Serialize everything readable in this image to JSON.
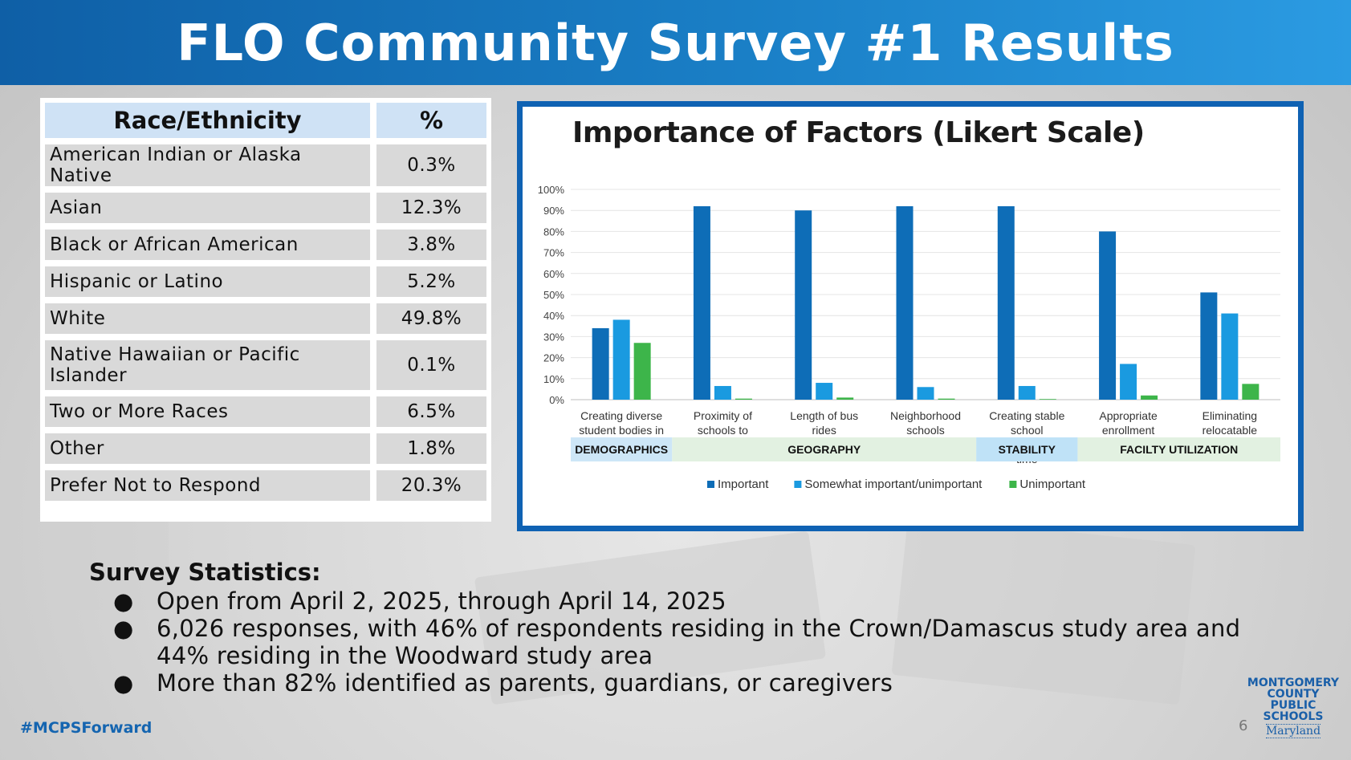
{
  "header": {
    "title": "FLO Community Survey #1 Results"
  },
  "table": {
    "headers": [
      "Race/Ethnicity",
      "%"
    ],
    "rows": [
      {
        "label": "American Indian or Alaska Native",
        "value": "0.3%"
      },
      {
        "label": "Asian",
        "value": "12.3%"
      },
      {
        "label": "Black or African American",
        "value": "3.8%"
      },
      {
        "label": "Hispanic or Latino",
        "value": "5.2%"
      },
      {
        "label": "White",
        "value": "49.8%"
      },
      {
        "label": "Native Hawaiian or Pacific Islander",
        "value": "0.1%"
      },
      {
        "label": "Two or More Races",
        "value": "6.5%"
      },
      {
        "label": "Other",
        "value": "1.8%"
      },
      {
        "label": "Prefer Not to Respond",
        "value": "20.3%"
      }
    ]
  },
  "chart_data": {
    "type": "bar",
    "title": "Importance of Factors (Likert Scale)",
    "categories": [
      "Creating diverse student bodies in each school",
      "Proximity of schools to student homes",
      "Length of bus rides",
      "Neighborhood schools",
      "Creating stable school assignments over time",
      "Appropriate enrollment",
      "Eliminating relocatable classrooms"
    ],
    "series": [
      {
        "name": "Important",
        "color": "#0e6db7",
        "values": [
          34,
          92,
          90,
          92,
          92,
          80,
          51
        ]
      },
      {
        "name": "Somewhat important/unimportant",
        "color": "#1a9ae0",
        "values": [
          38,
          6.5,
          8,
          6,
          6.5,
          17,
          41
        ]
      },
      {
        "name": "Unimportant",
        "color": "#3db54a",
        "values": [
          27,
          0.5,
          1,
          0.5,
          0.3,
          2,
          7.5
        ]
      }
    ],
    "ylim": [
      0,
      100
    ],
    "yticks": [
      "0%",
      "10%",
      "20%",
      "30%",
      "40%",
      "50%",
      "60%",
      "70%",
      "80%",
      "90%",
      "100%"
    ],
    "groups": [
      {
        "label": "DEMOGRAPHICS",
        "span": 1,
        "color": "#cde6f7"
      },
      {
        "label": "GEOGRAPHY",
        "span": 3,
        "color": "#e2f1e1"
      },
      {
        "label": "STABILITY",
        "span": 1,
        "color": "#bfe2f7"
      },
      {
        "label": "FACILTY UTILIZATION",
        "span": 2,
        "color": "#e2f1e1"
      }
    ],
    "legend_position": "bottom",
    "grid": true
  },
  "stats": {
    "heading": "Survey Statistics:",
    "bullet": "●",
    "items": [
      "Open from April 2, 2025, through April 14, 2025",
      "6,026 responses, with 46% of respondents residing in the Crown/Damascus study area and 44% residing in the Woodward study area",
      "More than 82% identified as parents, guardians, or caregivers"
    ]
  },
  "footer": {
    "hashtag": "#MCPSForward",
    "page_number": "6",
    "logo_lines": [
      "MONTGOMERY",
      "COUNTY",
      "PUBLIC",
      "SCHOOLS"
    ],
    "logo_state": "Maryland"
  }
}
